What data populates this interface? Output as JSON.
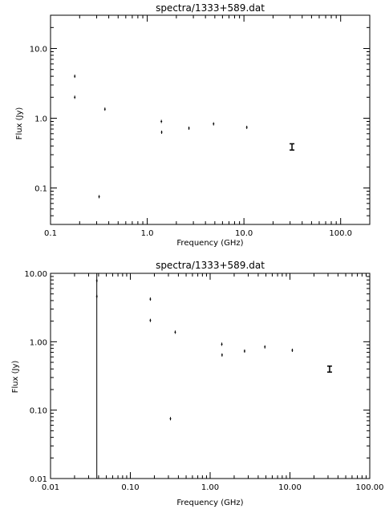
{
  "chart_data": [
    {
      "type": "scatter",
      "title": "spectra/1333+589.dat",
      "xlabel": "Frequency (GHz)",
      "ylabel": "Flux (Jy)",
      "xscale": "log",
      "yscale": "log",
      "xlim": [
        0.1,
        200
      ],
      "ylim": [
        0.03,
        30
      ],
      "xticks": [
        {
          "value": 0.1,
          "label": "0.1"
        },
        {
          "value": 1,
          "label": "1.0"
        },
        {
          "value": 10,
          "label": "10.0"
        },
        {
          "value": 100,
          "label": "100.0"
        }
      ],
      "yticks": [
        {
          "value": 0.1,
          "label": "0.1"
        },
        {
          "value": 1,
          "label": "1.0"
        },
        {
          "value": 10,
          "label": "10.0"
        }
      ],
      "points": [
        {
          "x": 0.178,
          "y": 4.0
        },
        {
          "x": 0.178,
          "y": 2.0
        },
        {
          "x": 0.318,
          "y": 0.075
        },
        {
          "x": 0.365,
          "y": 1.35
        },
        {
          "x": 1.4,
          "y": 0.9
        },
        {
          "x": 1.41,
          "y": 0.63
        },
        {
          "x": 2.7,
          "y": 0.72
        },
        {
          "x": 4.85,
          "y": 0.83
        },
        {
          "x": 10.7,
          "y": 0.74
        },
        {
          "x": 31.4,
          "y": 0.39,
          "yerr": 0.04
        }
      ]
    },
    {
      "type": "scatter",
      "title": "spectra/1333+589.dat",
      "xlabel": "Frequency (GHz)",
      "ylabel": "Flux (Jy)",
      "xscale": "log",
      "yscale": "log",
      "xlim": [
        0.01,
        100
      ],
      "ylim": [
        0.01,
        10
      ],
      "xticks": [
        {
          "value": 0.01,
          "label": "0.01"
        },
        {
          "value": 0.1,
          "label": "0.10"
        },
        {
          "value": 1,
          "label": "1.00"
        },
        {
          "value": 10,
          "label": "10.00"
        },
        {
          "value": 100,
          "label": "100.00"
        }
      ],
      "yticks": [
        {
          "value": 0.01,
          "label": "0.01"
        },
        {
          "value": 0.1,
          "label": "0.10"
        },
        {
          "value": 1,
          "label": "1.00"
        },
        {
          "value": 10,
          "label": "10.00"
        }
      ],
      "vlines": [
        0.038
      ],
      "points": [
        {
          "x": 0.038,
          "y": 7.8
        },
        {
          "x": 0.038,
          "y": 4.6
        },
        {
          "x": 0.178,
          "y": 4.2
        },
        {
          "x": 0.178,
          "y": 2.05
        },
        {
          "x": 0.318,
          "y": 0.075
        },
        {
          "x": 0.365,
          "y": 1.38
        },
        {
          "x": 1.4,
          "y": 0.92
        },
        {
          "x": 1.41,
          "y": 0.64
        },
        {
          "x": 2.7,
          "y": 0.73
        },
        {
          "x": 4.85,
          "y": 0.84
        },
        {
          "x": 10.7,
          "y": 0.75
        },
        {
          "x": 31.4,
          "y": 0.4,
          "yerr": 0.04
        }
      ]
    }
  ]
}
